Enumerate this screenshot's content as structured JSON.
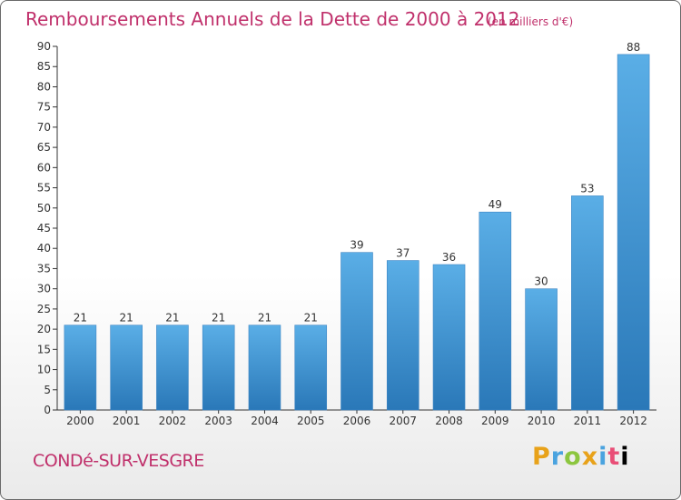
{
  "chart_data": {
    "type": "bar",
    "title": "Remboursements Annuels de la Dette de 2000 à 2012",
    "unit_note": "(en milliers d'€)",
    "categories": [
      "2000",
      "2001",
      "2002",
      "2003",
      "2004",
      "2005",
      "2006",
      "2007",
      "2008",
      "2009",
      "2010",
      "2011",
      "2012"
    ],
    "values": [
      21,
      21,
      21,
      21,
      21,
      21,
      39,
      37,
      36,
      49,
      30,
      53,
      88
    ],
    "ylim": [
      0,
      90
    ],
    "ytick_step": 5,
    "xlabel": "",
    "ylabel": "",
    "grid": false,
    "bar_color_top": "#5aaee6",
    "bar_color_bottom": "#2a78b8"
  },
  "footer": {
    "commune": "CONDé-SUR-VESGRE",
    "logo_text": "Proxiti"
  },
  "colors": {
    "title": "#c0306b",
    "axis": "#333333"
  }
}
